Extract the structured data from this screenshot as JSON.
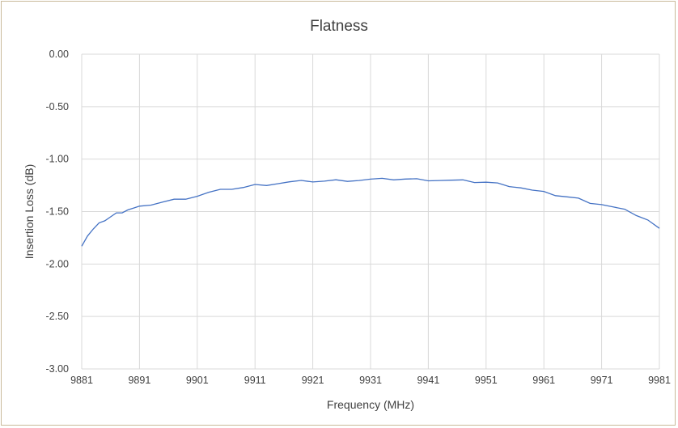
{
  "chart_data": {
    "type": "line",
    "title": "Flatness",
    "xlabel": "Frequency (MHz)",
    "ylabel": "Insertion Loss (dB)",
    "xlim": [
      9881,
      9981
    ],
    "ylim": [
      -3.0,
      0.0
    ],
    "x_ticks": [
      "9881",
      "9891",
      "9901",
      "9911",
      "9921",
      "9931",
      "9941",
      "9951",
      "9961",
      "9971",
      "9981"
    ],
    "y_ticks": [
      "0.00",
      "-0.50",
      "-1.00",
      "-1.50",
      "-2.00",
      "-2.50",
      "-3.00"
    ],
    "grid": true,
    "legend": "none",
    "line_color": "#4472c4",
    "series": [
      {
        "x": [
          9881,
          9882,
          9883,
          9884,
          9885,
          9886,
          9887,
          9888,
          9889,
          9890,
          9891,
          9893,
          9895,
          9897,
          9899,
          9901,
          9903,
          9905,
          9907,
          9909,
          9911,
          9913,
          9915,
          9917,
          9919,
          9921,
          9923,
          9925,
          9927,
          9929,
          9931,
          9933,
          9935,
          9937,
          9939,
          9941,
          9943,
          9945,
          9947,
          9949,
          9951,
          9953,
          9955,
          9957,
          9959,
          9961,
          9963,
          9965,
          9967,
          9969,
          9971,
          9973,
          9975,
          9977,
          9979,
          9981
        ],
        "y": [
          -1.83,
          -1.73,
          -1.67,
          -1.62,
          -1.58,
          -1.55,
          -1.52,
          -1.5,
          -1.48,
          -1.47,
          -1.46,
          -1.43,
          -1.41,
          -1.39,
          -1.37,
          -1.35,
          -1.32,
          -1.3,
          -1.28,
          -1.27,
          -1.25,
          -1.24,
          -1.23,
          -1.22,
          -1.215,
          -1.21,
          -1.21,
          -1.205,
          -1.2,
          -1.2,
          -1.195,
          -1.195,
          -1.19,
          -1.19,
          -1.195,
          -1.195,
          -1.2,
          -1.205,
          -1.21,
          -1.215,
          -1.22,
          -1.235,
          -1.25,
          -1.27,
          -1.3,
          -1.32,
          -1.34,
          -1.36,
          -1.38,
          -1.41,
          -1.43,
          -1.46,
          -1.49,
          -1.53,
          -1.58,
          -1.66
        ]
      }
    ]
  }
}
